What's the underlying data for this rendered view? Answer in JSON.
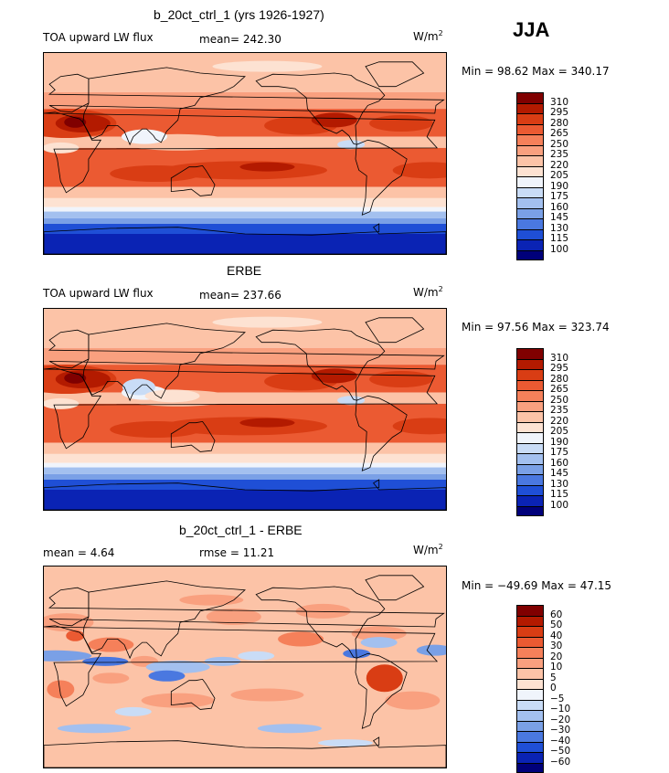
{
  "season": "JJA",
  "panels": [
    {
      "id": "model",
      "title": "b_20ct_ctrl_1 (yrs 1926-1927)",
      "left_text": "TOA upward LW flux",
      "mid_text": "mean= 242.30",
      "unit_base": "W/m",
      "unit_exp": "2",
      "minmax": "Min =  98.62 Max = 340.17",
      "levels": [
        "310",
        "295",
        "280",
        "265",
        "250",
        "235",
        "220",
        "205",
        "190",
        "175",
        "160",
        "145",
        "130",
        "115",
        "100"
      ],
      "colors": [
        "#800000",
        "#b31a00",
        "#d93d14",
        "#eb5a32",
        "#f5805a",
        "#f9a07f",
        "#fcc3a7",
        "#fde2d2",
        "#f0f4fb",
        "#c9dcf6",
        "#a3c0ef",
        "#7aa0e6",
        "#4a78e0",
        "#1f4fd6",
        "#0a23b4",
        "#00007a"
      ]
    },
    {
      "id": "obs",
      "title": "ERBE",
      "left_text": "TOA upward LW flux",
      "mid_text": "mean= 237.66",
      "unit_base": "W/m",
      "unit_exp": "2",
      "minmax": "Min =  97.56 Max = 323.74",
      "levels": [
        "310",
        "295",
        "280",
        "265",
        "250",
        "235",
        "220",
        "205",
        "190",
        "175",
        "160",
        "145",
        "130",
        "115",
        "100"
      ],
      "colors": [
        "#800000",
        "#b31a00",
        "#d93d14",
        "#eb5a32",
        "#f5805a",
        "#f9a07f",
        "#fcc3a7",
        "#fde2d2",
        "#f0f4fb",
        "#c9dcf6",
        "#a3c0ef",
        "#7aa0e6",
        "#4a78e0",
        "#1f4fd6",
        "#0a23b4",
        "#00007a"
      ]
    },
    {
      "id": "diff",
      "title": "b_20ct_ctrl_1 - ERBE",
      "left_text": "mean =   4.64",
      "mid_text": "rmse =  11.21",
      "unit_base": "W/m",
      "unit_exp": "2",
      "minmax": "Min = −49.69 Max =  47.15",
      "levels": [
        "60",
        "50",
        "40",
        "30",
        "20",
        "10",
        "5",
        "0",
        "−5",
        "−10",
        "−20",
        "−30",
        "−40",
        "−50",
        "−60"
      ],
      "colors": [
        "#800000",
        "#b31a00",
        "#d93d14",
        "#eb5a32",
        "#f5805a",
        "#f9a07f",
        "#fcc3a7",
        "#fde2d2",
        "#f0f4fb",
        "#c9dcf6",
        "#a3c0ef",
        "#7aa0e6",
        "#4a78e0",
        "#1f4fd6",
        "#0a23b4",
        "#00007a"
      ]
    }
  ],
  "chart_data": [
    {
      "type": "heatmap",
      "title": "b_20ct_ctrl_1 (yrs 1926-1927)",
      "variable": "TOA upward LW flux",
      "units": "W/m^2",
      "mean": 242.3,
      "min": 98.62,
      "max": 340.17,
      "contour_levels": [
        100,
        115,
        130,
        145,
        160,
        175,
        190,
        205,
        220,
        235,
        250,
        265,
        280,
        295,
        310
      ]
    },
    {
      "type": "heatmap",
      "title": "ERBE",
      "variable": "TOA upward LW flux",
      "units": "W/m^2",
      "mean": 237.66,
      "min": 97.56,
      "max": 323.74,
      "contour_levels": [
        100,
        115,
        130,
        145,
        160,
        175,
        190,
        205,
        220,
        235,
        250,
        265,
        280,
        295,
        310
      ]
    },
    {
      "type": "heatmap",
      "title": "b_20ct_ctrl_1 - ERBE",
      "units": "W/m^2",
      "mean": 4.64,
      "rmse": 11.21,
      "min": -49.69,
      "max": 47.15,
      "contour_levels": [
        -60,
        -50,
        -40,
        -30,
        -20,
        -10,
        -5,
        0,
        5,
        10,
        20,
        30,
        40,
        50,
        60
      ]
    }
  ]
}
